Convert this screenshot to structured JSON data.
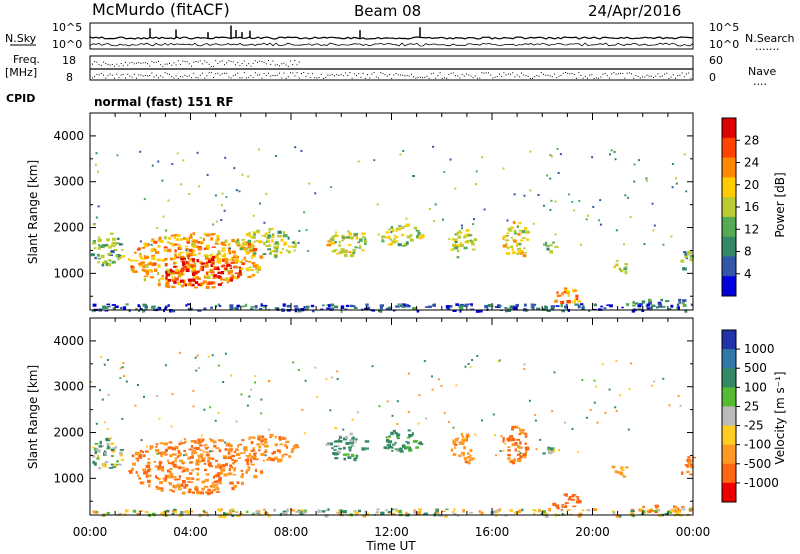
{
  "header": {
    "station": "McMurdo (fitACF)",
    "beam": "Beam 08",
    "date": "24/Apr/2016"
  },
  "strips": {
    "nsky_label": "N.Sky",
    "nsky_ticks": [
      "10^5",
      "10^0"
    ],
    "nsearch_label": "N.Search",
    "nsearch_ticks": [
      "10^5",
      "10^0"
    ],
    "nsearch_dots": ".......",
    "freq_label_1": "Freq.",
    "freq_label_2": "[MHz]",
    "freq_ticks": [
      "18",
      "8"
    ],
    "nave_label": "Nave",
    "nave_ticks": [
      "60",
      "0"
    ],
    "nave_dots": "....",
    "cpid_label": "CPID",
    "cpid_text": "normal (fast) 151 RF"
  },
  "x_axis": {
    "label": "Time UT",
    "tick_labels": [
      "00:00",
      "04:00",
      "08:00",
      "12:00",
      "16:00",
      "20:00",
      "00:00"
    ],
    "range_hours": [
      0,
      24
    ]
  },
  "colorbars": {
    "power": {
      "label": "Power [dB]",
      "ticks": [
        "28",
        "24",
        "20",
        "16",
        "12",
        "8",
        "4"
      ],
      "colors": [
        "#dd0000",
        "#ff4400",
        "#ff8800",
        "#ffcc00",
        "#bbcc33",
        "#55aa55",
        "#338866",
        "#3355aa",
        "#0000dd"
      ]
    },
    "velocity": {
      "label": "Velocity [m s⁻¹]",
      "ticks": [
        "1000",
        "500",
        "100",
        "25",
        "-25",
        "-100",
        "-500",
        "-1000"
      ],
      "colors": [
        "#2233aa",
        "#3377aa",
        "#338866",
        "#55bb33",
        "#bbbbbb",
        "#ffcc22",
        "#ff9922",
        "#ff6611",
        "#ee0000"
      ]
    }
  },
  "chart_data": [
    {
      "type": "heatmap",
      "title": "",
      "xlabel": "Time UT",
      "ylabel": "Slant Range [km]",
      "x_ticks": [
        "00:00",
        "04:00",
        "08:00",
        "12:00",
        "16:00",
        "20:00",
        "00:00"
      ],
      "y_ticks": [
        1000,
        2000,
        3000,
        4000
      ],
      "ylim": [
        200,
        4500
      ],
      "colorbar_label": "Power [dB]",
      "colorbar_ticks": [
        4,
        8,
        12,
        16,
        20,
        24,
        28
      ],
      "echo_regions": [
        {
          "t_start": 0.0,
          "t_end": 1.3,
          "r_low": 1200,
          "r_high": 1900,
          "value": 12
        },
        {
          "t_start": 1.5,
          "t_end": 6.8,
          "r_low": 700,
          "r_high": 1900,
          "value": 20
        },
        {
          "t_start": 2.8,
          "t_end": 6.0,
          "r_low": 750,
          "r_high": 1400,
          "value": 27
        },
        {
          "t_start": 5.8,
          "t_end": 8.2,
          "r_low": 1400,
          "r_high": 2000,
          "value": 14
        },
        {
          "t_start": 9.3,
          "t_end": 11.0,
          "r_low": 1400,
          "r_high": 2000,
          "value": 16
        },
        {
          "t_start": 11.5,
          "t_end": 13.2,
          "r_low": 1600,
          "r_high": 2100,
          "value": 14
        },
        {
          "t_start": 14.3,
          "t_end": 15.3,
          "r_low": 1300,
          "r_high": 2000,
          "value": 14
        },
        {
          "t_start": 16.4,
          "t_end": 17.4,
          "r_low": 1300,
          "r_high": 2200,
          "value": 16
        },
        {
          "t_start": 18.0,
          "t_end": 18.5,
          "r_low": 1500,
          "r_high": 1700,
          "value": 14
        },
        {
          "t_start": 18.3,
          "t_end": 19.5,
          "r_low": 300,
          "r_high": 700,
          "value": 22
        },
        {
          "t_start": 20.7,
          "t_end": 21.3,
          "r_low": 1050,
          "r_high": 1300,
          "value": 16
        },
        {
          "t_start": 23.5,
          "t_end": 24.0,
          "r_low": 1100,
          "r_high": 1500,
          "value": 12
        },
        {
          "t_start": 21.5,
          "t_end": 24.0,
          "r_low": 300,
          "r_high": 450,
          "value": 8
        },
        {
          "t_start": 0.0,
          "t_end": 24.0,
          "r_low": 200,
          "r_high": 350,
          "value": 6
        }
      ]
    },
    {
      "type": "heatmap",
      "title": "",
      "xlabel": "Time UT",
      "ylabel": "Slant Range [km]",
      "x_ticks": [
        "00:00",
        "04:00",
        "08:00",
        "12:00",
        "16:00",
        "20:00",
        "00:00"
      ],
      "y_ticks": [
        1000,
        2000,
        3000,
        4000
      ],
      "ylim": [
        200,
        4500
      ],
      "colorbar_label": "Velocity [m s⁻¹]",
      "colorbar_ticks": [
        1000,
        500,
        100,
        25,
        -25,
        -100,
        -500,
        -1000
      ],
      "echo_regions": [
        {
          "t_start": 0.0,
          "t_end": 1.3,
          "r_low": 1200,
          "r_high": 1900,
          "value": 50
        },
        {
          "t_start": 1.5,
          "t_end": 6.8,
          "r_low": 700,
          "r_high": 1900,
          "value": -300
        },
        {
          "t_start": 5.8,
          "t_end": 8.2,
          "r_low": 1400,
          "r_high": 2000,
          "value": -250
        },
        {
          "t_start": 9.3,
          "t_end": 11.0,
          "r_low": 1400,
          "r_high": 2000,
          "value": 100
        },
        {
          "t_start": 11.5,
          "t_end": 13.2,
          "r_low": 1600,
          "r_high": 2100,
          "value": 150
        },
        {
          "t_start": 14.3,
          "t_end": 15.3,
          "r_low": 1300,
          "r_high": 2000,
          "value": -200
        },
        {
          "t_start": 16.4,
          "t_end": 17.4,
          "r_low": 1300,
          "r_high": 2200,
          "value": -300
        },
        {
          "t_start": 18.0,
          "t_end": 18.5,
          "r_low": 1500,
          "r_high": 1700,
          "value": 80
        },
        {
          "t_start": 18.3,
          "t_end": 19.5,
          "r_low": 300,
          "r_high": 700,
          "value": -400
        },
        {
          "t_start": 20.7,
          "t_end": 21.3,
          "r_low": 1050,
          "r_high": 1300,
          "value": -200
        },
        {
          "t_start": 23.5,
          "t_end": 24.0,
          "r_low": 1100,
          "r_high": 1500,
          "value": -350
        },
        {
          "t_start": 21.5,
          "t_end": 24.0,
          "r_low": 300,
          "r_high": 450,
          "value": -300
        },
        {
          "t_start": 0.0,
          "t_end": 24.0,
          "r_low": 200,
          "r_high": 350,
          "value": -30
        }
      ]
    }
  ]
}
